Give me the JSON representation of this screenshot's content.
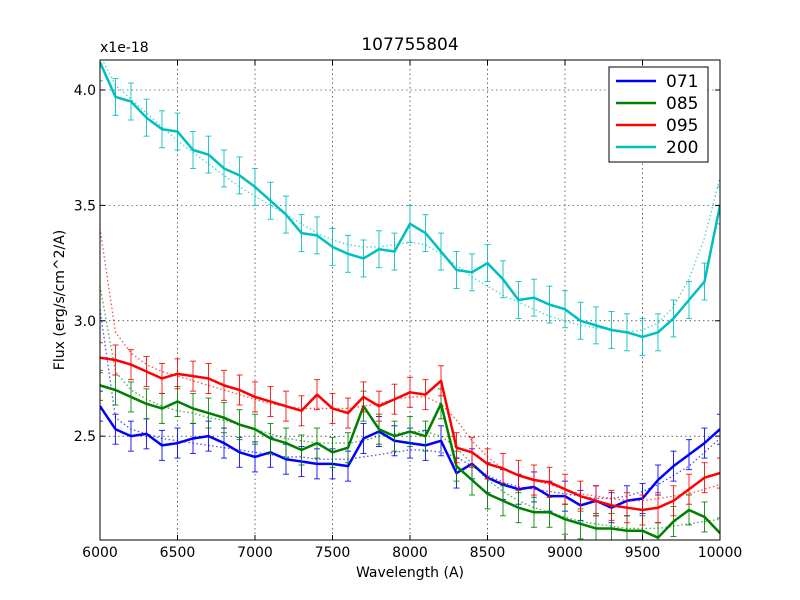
{
  "chart_data": {
    "type": "line",
    "title": "107755804",
    "xlabel": "Wavelength (A)",
    "ylabel": "Flux (erg/s/cm^2/A)",
    "offset_label": "x1e-18",
    "xlim": [
      6000,
      10000
    ],
    "ylim": [
      2.05,
      4.13
    ],
    "xticks": [
      6000,
      6500,
      7000,
      7500,
      8000,
      8500,
      9000,
      9500,
      10000
    ],
    "xtick_labels": [
      "6000",
      "6500",
      "7000",
      "7500",
      "8000",
      "8500",
      "9000",
      "9500",
      "10000"
    ],
    "yticks": [
      2.5,
      3.0,
      3.5,
      4.0
    ],
    "ytick_labels": [
      "2.5",
      "3.0",
      "3.5",
      "4.0"
    ],
    "grid": true,
    "legend_position": "top-right",
    "x": [
      6000,
      6100,
      6200,
      6300,
      6400,
      6500,
      6600,
      6700,
      6800,
      6900,
      7000,
      7100,
      7200,
      7300,
      7400,
      7500,
      7600,
      7700,
      7800,
      7900,
      8000,
      8100,
      8200,
      8300,
      8400,
      8500,
      8600,
      8700,
      8800,
      8900,
      9000,
      9100,
      9200,
      9300,
      9400,
      9500,
      9600,
      9700,
      9800,
      9900,
      10000
    ],
    "series": [
      {
        "name": "071",
        "color": "#0000ff",
        "error": 0.065,
        "values": [
          2.63,
          2.53,
          2.5,
          2.51,
          2.46,
          2.47,
          2.49,
          2.5,
          2.47,
          2.43,
          2.41,
          2.43,
          2.4,
          2.39,
          2.38,
          2.38,
          2.37,
          2.49,
          2.52,
          2.48,
          2.47,
          2.46,
          2.48,
          2.34,
          2.38,
          2.32,
          2.29,
          2.27,
          2.28,
          2.24,
          2.24,
          2.2,
          2.22,
          2.19,
          2.22,
          2.23,
          2.31,
          2.37,
          2.42,
          2.47,
          2.53
        ],
        "fit": [
          3.05,
          2.58,
          2.53,
          2.51,
          2.49,
          2.48,
          2.47,
          2.46,
          2.45,
          2.44,
          2.43,
          2.42,
          2.41,
          2.41,
          2.4,
          2.4,
          2.4,
          2.41,
          2.42,
          2.43,
          2.44,
          2.44,
          2.43,
          2.41,
          2.37,
          2.33,
          2.3,
          2.28,
          2.27,
          2.26,
          2.25,
          2.24,
          2.23,
          2.23,
          2.24,
          2.26,
          2.29,
          2.33,
          2.37,
          2.43,
          2.49
        ]
      },
      {
        "name": "085",
        "color": "#008000",
        "error": 0.065,
        "values": [
          2.72,
          2.7,
          2.67,
          2.64,
          2.62,
          2.65,
          2.62,
          2.6,
          2.58,
          2.55,
          2.53,
          2.49,
          2.47,
          2.44,
          2.47,
          2.43,
          2.45,
          2.63,
          2.53,
          2.5,
          2.52,
          2.5,
          2.64,
          2.37,
          2.31,
          2.25,
          2.22,
          2.19,
          2.17,
          2.17,
          2.14,
          2.12,
          2.1,
          2.1,
          2.09,
          2.09,
          2.06,
          2.13,
          2.18,
          2.15,
          2.08
        ],
        "fit": [
          3.15,
          2.78,
          2.7,
          2.66,
          2.63,
          2.61,
          2.6,
          2.58,
          2.57,
          2.55,
          2.53,
          2.51,
          2.49,
          2.48,
          2.47,
          2.47,
          2.47,
          2.48,
          2.5,
          2.51,
          2.52,
          2.52,
          2.5,
          2.45,
          2.38,
          2.31,
          2.26,
          2.22,
          2.19,
          2.17,
          2.15,
          2.13,
          2.12,
          2.11,
          2.1,
          2.1,
          2.1,
          2.11,
          2.12,
          2.13,
          2.14
        ]
      },
      {
        "name": "095",
        "color": "#ff0000",
        "error": 0.065,
        "values": [
          2.84,
          2.83,
          2.81,
          2.78,
          2.75,
          2.77,
          2.76,
          2.75,
          2.72,
          2.7,
          2.67,
          2.65,
          2.63,
          2.61,
          2.68,
          2.62,
          2.6,
          2.67,
          2.63,
          2.66,
          2.69,
          2.68,
          2.74,
          2.45,
          2.43,
          2.38,
          2.36,
          2.33,
          2.31,
          2.3,
          2.27,
          2.24,
          2.22,
          2.2,
          2.19,
          2.18,
          2.19,
          2.22,
          2.27,
          2.32,
          2.34
        ],
        "fit": [
          3.4,
          2.95,
          2.86,
          2.81,
          2.78,
          2.76,
          2.74,
          2.72,
          2.7,
          2.68,
          2.66,
          2.64,
          2.63,
          2.62,
          2.62,
          2.62,
          2.62,
          2.63,
          2.64,
          2.66,
          2.67,
          2.67,
          2.64,
          2.57,
          2.48,
          2.41,
          2.36,
          2.33,
          2.31,
          2.29,
          2.27,
          2.25,
          2.24,
          2.23,
          2.22,
          2.22,
          2.23,
          2.24,
          2.25,
          2.27,
          2.29
        ]
      },
      {
        "name": "200",
        "color": "#00bfbf",
        "error": 0.08,
        "values": [
          4.12,
          3.97,
          3.95,
          3.88,
          3.83,
          3.82,
          3.74,
          3.72,
          3.66,
          3.63,
          3.58,
          3.52,
          3.46,
          3.38,
          3.37,
          3.32,
          3.29,
          3.27,
          3.31,
          3.3,
          3.42,
          3.38,
          3.3,
          3.22,
          3.21,
          3.25,
          3.18,
          3.09,
          3.1,
          3.07,
          3.05,
          3.0,
          2.98,
          2.96,
          2.95,
          2.93,
          2.95,
          3.01,
          3.09,
          3.17,
          3.5
        ],
        "fit": [
          4.15,
          4.02,
          3.96,
          3.9,
          3.84,
          3.78,
          3.73,
          3.68,
          3.63,
          3.58,
          3.54,
          3.5,
          3.46,
          3.42,
          3.38,
          3.35,
          3.33,
          3.32,
          3.32,
          3.33,
          3.34,
          3.33,
          3.29,
          3.24,
          3.19,
          3.15,
          3.11,
          3.08,
          3.05,
          3.02,
          3.0,
          2.98,
          2.97,
          2.96,
          2.95,
          2.96,
          2.99,
          3.06,
          3.18,
          3.36,
          3.62
        ]
      }
    ]
  }
}
